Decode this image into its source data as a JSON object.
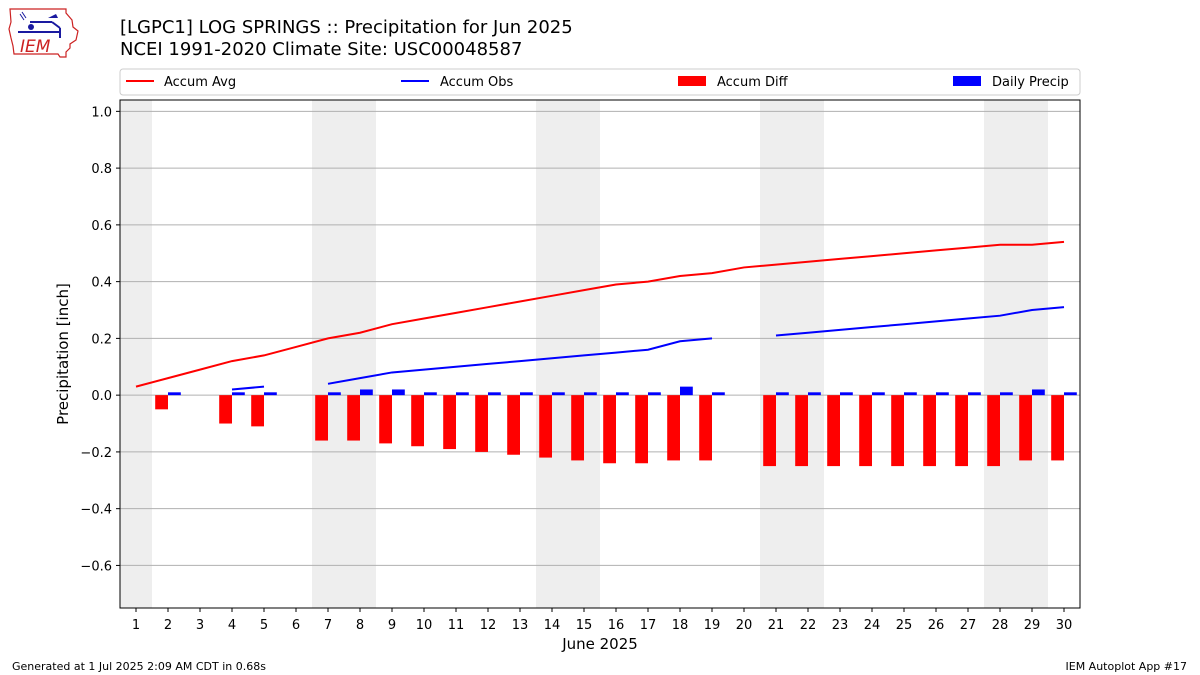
{
  "header": {
    "title_line1": "[LGPC1] LOG SPRINGS :: Precipitation for Jun 2025",
    "title_line2": "NCEI 1991-2020 Climate Site: USC00048587",
    "logo_text": "IEM"
  },
  "footer": {
    "left": "Generated at 1 Jul 2025 2:09 AM CDT in 0.68s",
    "right": "IEM Autoplot App #17"
  },
  "colors": {
    "avg": "#ff0000",
    "obs": "#0000ff",
    "diff": "#ff0000",
    "daily": "#0000ff",
    "weekend_shade": "#eeeeee",
    "grid": "#b0b0b0"
  },
  "chart_data": {
    "type": "bar",
    "xlabel": "June 2025",
    "ylabel": "Precipitation [inch]",
    "xlim": [
      0.5,
      30.5
    ],
    "ylim": [
      -0.75,
      1.04
    ],
    "yticks": [
      -0.6,
      -0.4,
      -0.2,
      0.0,
      0.2,
      0.4,
      0.6,
      0.8,
      1.0
    ],
    "ytick_labels": [
      "−0.6",
      "−0.4",
      "−0.2",
      "0.0",
      "0.2",
      "0.4",
      "0.6",
      "0.8",
      "1.0"
    ],
    "categories": [
      1,
      2,
      3,
      4,
      5,
      6,
      7,
      8,
      9,
      10,
      11,
      12,
      13,
      14,
      15,
      16,
      17,
      18,
      19,
      20,
      21,
      22,
      23,
      24,
      25,
      26,
      27,
      28,
      29,
      30
    ],
    "grid": "horizontal",
    "legend_position": "top",
    "weekend_days": [
      1,
      7,
      8,
      14,
      15,
      21,
      22,
      28,
      29
    ],
    "series": [
      {
        "name": "Accum Avg",
        "kind": "line",
        "values": [
          0.03,
          0.06,
          0.09,
          0.12,
          0.14,
          0.17,
          0.2,
          0.22,
          0.25,
          0.27,
          0.29,
          0.31,
          0.33,
          0.35,
          0.37,
          0.39,
          0.4,
          0.42,
          0.43,
          0.45,
          0.46,
          0.47,
          0.48,
          0.49,
          0.5,
          0.51,
          0.52,
          0.53,
          0.53,
          0.54
        ]
      },
      {
        "name": "Accum Obs",
        "kind": "line",
        "values": [
          null,
          null,
          null,
          0.02,
          0.03,
          null,
          0.04,
          0.06,
          0.08,
          0.09,
          0.1,
          0.11,
          0.12,
          0.13,
          0.14,
          0.15,
          0.16,
          0.19,
          0.2,
          null,
          0.21,
          0.22,
          0.23,
          0.24,
          0.25,
          0.26,
          0.27,
          0.28,
          0.3,
          0.31
        ]
      },
      {
        "name": "Accum Diff",
        "kind": "bar",
        "values": [
          null,
          -0.05,
          null,
          -0.1,
          -0.11,
          null,
          -0.16,
          -0.16,
          -0.17,
          -0.18,
          -0.19,
          -0.2,
          -0.21,
          -0.22,
          -0.23,
          -0.24,
          -0.24,
          -0.23,
          -0.23,
          null,
          -0.25,
          -0.25,
          -0.25,
          -0.25,
          -0.25,
          -0.25,
          -0.25,
          -0.25,
          -0.23,
          -0.23
        ]
      },
      {
        "name": "Daily Precip",
        "kind": "bar",
        "values": [
          null,
          0.01,
          null,
          0.01,
          0.01,
          null,
          0.01,
          0.02,
          0.02,
          0.01,
          0.01,
          0.01,
          0.01,
          0.01,
          0.01,
          0.01,
          0.01,
          0.03,
          0.01,
          null,
          0.01,
          0.01,
          0.01,
          0.01,
          0.01,
          0.01,
          0.01,
          0.01,
          0.02,
          0.01
        ]
      }
    ]
  }
}
